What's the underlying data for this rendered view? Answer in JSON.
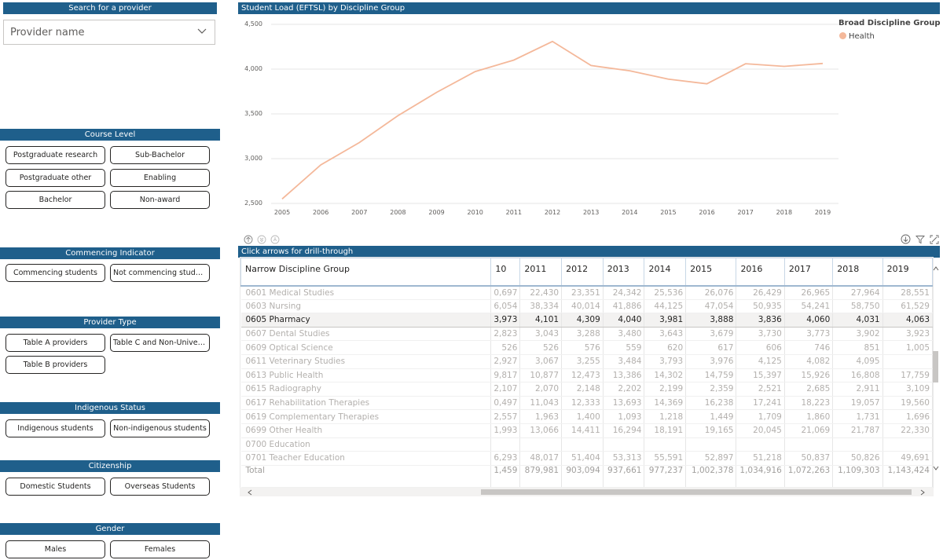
{
  "sidebar": {
    "search": {
      "header": "Search for a provider",
      "placeholder": "Provider name"
    },
    "course_level": {
      "header": "Course Level",
      "buttons": [
        "Postgraduate research",
        "Sub-Bachelor",
        "Postgraduate other",
        "Enabling",
        "Bachelor",
        "Non-award"
      ]
    },
    "commencing": {
      "header": "Commencing Indicator",
      "buttons": [
        "Commencing students",
        "Not commencing stude..."
      ]
    },
    "provider_type": {
      "header": "Provider Type",
      "buttons": [
        "Table A providers",
        "Table C and Non-Univer...",
        "Table B providers"
      ]
    },
    "indigenous": {
      "header": "Indigenous Status",
      "buttons": [
        "Indigenous students",
        "Non-indigenous students"
      ]
    },
    "citizenship": {
      "header": "Citizenship",
      "buttons": [
        "Domestic Students",
        "Overseas Students"
      ]
    },
    "gender": {
      "header": "Gender",
      "buttons": [
        "Males",
        "Females"
      ]
    }
  },
  "chart": {
    "header": "Student Load (EFTSL) by Discipline Group",
    "legend_title": "Broad Discipline Group",
    "colors": {
      "line": "#f4b89a",
      "header_bg": "#1f5f8b"
    }
  },
  "chart_data": {
    "type": "line",
    "title": "Student Load (EFTSL) by Discipline Group",
    "x": [
      2005,
      2006,
      2007,
      2008,
      2009,
      2010,
      2011,
      2012,
      2013,
      2014,
      2015,
      2016,
      2017,
      2018,
      2019
    ],
    "series": [
      {
        "name": "Health",
        "values": [
          2550,
          2930,
          3180,
          3480,
          3740,
          3973,
          4101,
          4309,
          4040,
          3981,
          3888,
          3836,
          4060,
          4031,
          4063
        ]
      }
    ],
    "yticks": [
      "2,500",
      "3,000",
      "3,500",
      "4,000",
      "4,500"
    ],
    "ylim": [
      2500,
      4500
    ],
    "legend": "top-right",
    "grid": true
  },
  "table": {
    "header": "Click arrows for drill-through",
    "columns": [
      "Narrow Discipline Group",
      "10",
      "2011",
      "2012",
      "2013",
      "2014",
      "2015",
      "2016",
      "2017",
      "2018",
      "2019"
    ],
    "rows": [
      [
        "0601 Medical Studies",
        "0,697",
        "22,430",
        "23,351",
        "24,342",
        "25,536",
        "26,076",
        "26,429",
        "26,965",
        "27,964",
        "28,551"
      ],
      [
        "0603 Nursing",
        "6,054",
        "38,334",
        "40,014",
        "41,886",
        "44,125",
        "47,054",
        "50,935",
        "54,241",
        "58,750",
        "61,529"
      ],
      [
        "0605 Pharmacy",
        "3,973",
        "4,101",
        "4,309",
        "4,040",
        "3,981",
        "3,888",
        "3,836",
        "4,060",
        "4,031",
        "4,063"
      ],
      [
        "0607 Dental Studies",
        "2,823",
        "3,043",
        "3,288",
        "3,480",
        "3,643",
        "3,679",
        "3,730",
        "3,773",
        "3,902",
        "3,923"
      ],
      [
        "0609 Optical Science",
        "526",
        "526",
        "576",
        "559",
        "620",
        "617",
        "606",
        "746",
        "851",
        "1,005"
      ],
      [
        "0611 Veterinary Studies",
        "2,927",
        "3,067",
        "3,255",
        "3,484",
        "3,793",
        "3,976",
        "4,125",
        "4,082",
        "4,095",
        ""
      ],
      [
        "0613 Public Health",
        "9,817",
        "10,877",
        "12,473",
        "13,386",
        "14,302",
        "14,759",
        "15,397",
        "15,926",
        "16,808",
        "17,759"
      ],
      [
        "0615 Radiography",
        "2,107",
        "2,070",
        "2,148",
        "2,202",
        "2,199",
        "2,359",
        "2,521",
        "2,685",
        "2,911",
        "3,109"
      ],
      [
        "0617 Rehabilitation Therapies",
        "0,497",
        "11,043",
        "12,333",
        "13,693",
        "14,369",
        "16,238",
        "17,241",
        "18,223",
        "19,057",
        "19,560"
      ],
      [
        "0619 Complementary Therapies",
        "2,557",
        "1,963",
        "1,400",
        "1,093",
        "1,218",
        "1,449",
        "1,709",
        "1,860",
        "1,731",
        "1,696"
      ],
      [
        "0699 Other Health",
        "1,993",
        "13,066",
        "14,411",
        "16,294",
        "18,191",
        "19,165",
        "20,045",
        "21,069",
        "21,787",
        "22,330"
      ],
      [
        "0700 Education",
        "",
        "",
        "",
        "",
        "",
        "",
        "",
        "",
        "",
        ""
      ],
      [
        "0701 Teacher Education",
        "6,293",
        "48,017",
        "51,404",
        "53,313",
        "55,591",
        "52,897",
        "51,218",
        "50,837",
        "50,826",
        "49,691"
      ]
    ],
    "total": [
      "Total",
      "1,459",
      "879,981",
      "903,094",
      "937,661",
      "977,237",
      "1,002,378",
      "1,034,916",
      "1,072,263",
      "1,109,303",
      "1,143,424"
    ],
    "selected_row": 2
  }
}
